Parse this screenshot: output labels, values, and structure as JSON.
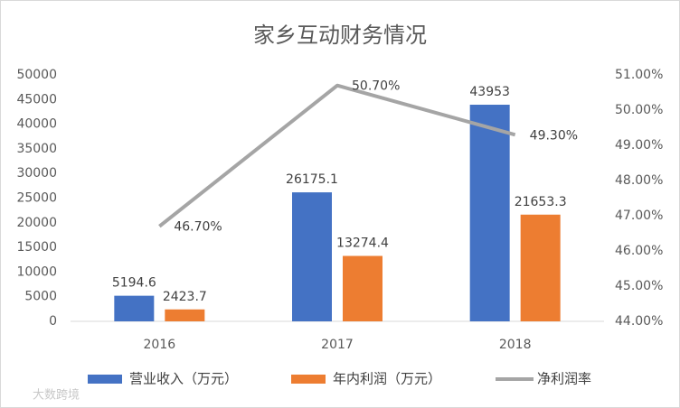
{
  "chart_data": {
    "type": "bar",
    "title": "家乡互动财务情况",
    "categories": [
      "2016",
      "2017",
      "2018"
    ],
    "series": [
      {
        "name": "营业收入（万元）",
        "color": "#4472c4",
        "values": [
          5194.6,
          26175.1,
          43953
        ]
      },
      {
        "name": "年内利润（万元）",
        "color": "#ed7d31",
        "values": [
          2423.7,
          13274.4,
          21653.3
        ]
      },
      {
        "name": "净利润率",
        "color": "#a5a5a5",
        "type": "line",
        "axis": "y2",
        "values": [
          46.7,
          50.7,
          49.3
        ],
        "value_labels": [
          "46.70%",
          "50.70%",
          "49.30%"
        ]
      }
    ],
    "ylim": [
      0,
      50000
    ],
    "yticks": [
      0,
      5000,
      10000,
      15000,
      20000,
      25000,
      30000,
      35000,
      40000,
      45000,
      50000
    ],
    "y2lim": [
      44,
      51
    ],
    "y2ticks": [
      {
        "value": 44,
        "label": "44.00%"
      },
      {
        "value": 45,
        "label": "45.00%"
      },
      {
        "value": 46,
        "label": "46.00%"
      },
      {
        "value": 47,
        "label": "47.00%"
      },
      {
        "value": 48,
        "label": "48.00%"
      },
      {
        "value": 49,
        "label": "49.00%"
      },
      {
        "value": 50,
        "label": "50.00%"
      },
      {
        "value": 51,
        "label": "51.00%"
      }
    ],
    "grid": false,
    "legend": "bottom",
    "watermark": "大数跨境"
  }
}
